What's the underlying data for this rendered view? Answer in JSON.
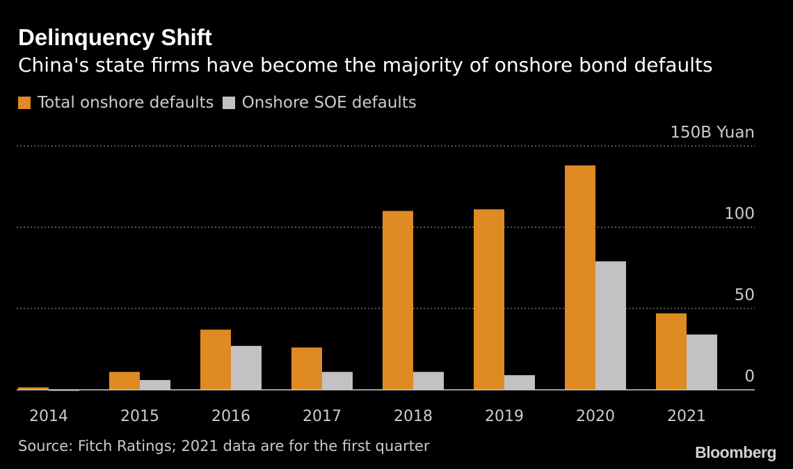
{
  "title": "Delinquency Shift",
  "subtitle": "China's state firms have become the majority of onshore bond defaults",
  "source": "Source: Fitch Ratings; 2021 data are for the first quarter",
  "brand": "Bloomberg",
  "colors": {
    "background": "#000000",
    "total": "#df8a22",
    "soe": "#c2c2c2",
    "grid": "#8a8a8a",
    "text": "#ffffff",
    "muted": "#cccccc"
  },
  "chart_data": {
    "type": "bar",
    "categories": [
      "2014",
      "2015",
      "2016",
      "2017",
      "2018",
      "2019",
      "2020",
      "2021"
    ],
    "series": [
      {
        "name": "Total onshore defaults",
        "color": "#df8a22",
        "values": [
          1.5,
          11,
          37,
          26,
          110,
          111,
          138,
          47
        ]
      },
      {
        "name": "Onshore SOE defaults",
        "color": "#c2c2c2",
        "values": [
          -0.5,
          6,
          27,
          11,
          11,
          9,
          79,
          34
        ]
      }
    ],
    "ylim": [
      -5,
      150
    ],
    "yticks": [
      {
        "value": 0,
        "label": "0"
      },
      {
        "value": 50,
        "label": "50"
      },
      {
        "value": 100,
        "label": "100"
      },
      {
        "value": 150,
        "label": "150B Yuan"
      }
    ],
    "ylabel": "",
    "xlabel": "",
    "grid": true,
    "legend_position": "top-left"
  }
}
